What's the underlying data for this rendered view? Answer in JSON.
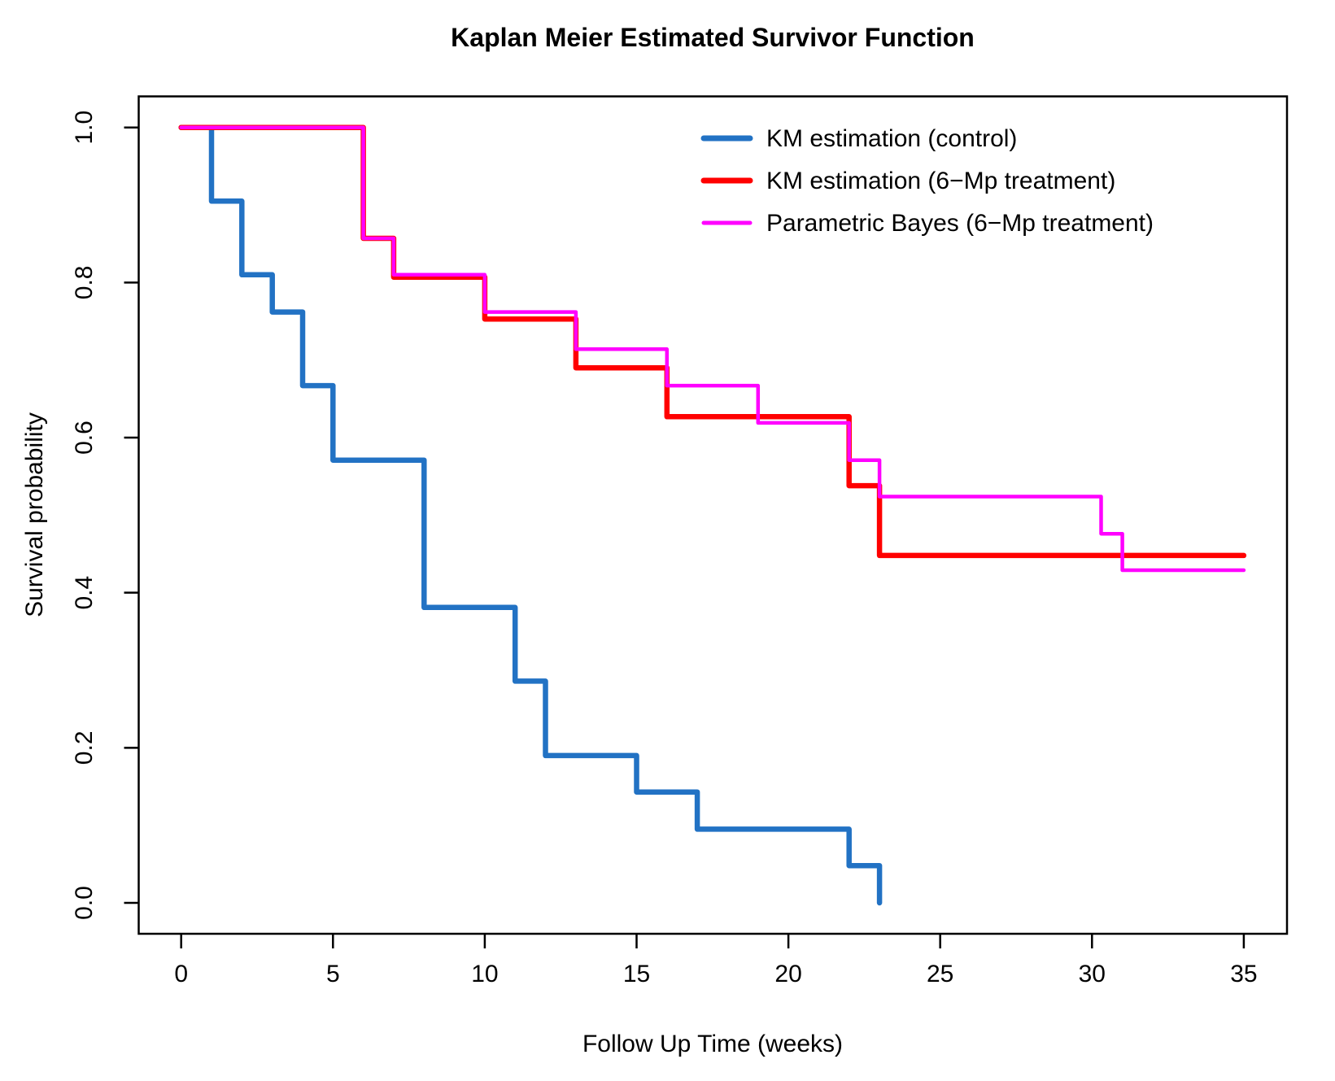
{
  "chart_data": {
    "type": "line",
    "subtype": "kaplan-meier-step",
    "title": "Kaplan Meier Estimated Survivor Function",
    "xlabel": "Follow Up Time (weeks)",
    "ylabel": "Survival probability",
    "xlim": [
      0,
      35
    ],
    "ylim": [
      0.0,
      1.0
    ],
    "grid": false,
    "legend_position": "top-right",
    "box_color": "#000000",
    "x_ticks": [
      {
        "v": 0,
        "label": "0"
      },
      {
        "v": 5,
        "label": "5"
      },
      {
        "v": 10,
        "label": "10"
      },
      {
        "v": 15,
        "label": "15"
      },
      {
        "v": 20,
        "label": "20"
      },
      {
        "v": 25,
        "label": "25"
      },
      {
        "v": 30,
        "label": "30"
      },
      {
        "v": 35,
        "label": "35"
      }
    ],
    "y_ticks": [
      {
        "v": 0.0,
        "label": "0.0"
      },
      {
        "v": 0.2,
        "label": "0.2"
      },
      {
        "v": 0.4,
        "label": "0.4"
      },
      {
        "v": 0.6,
        "label": "0.6"
      },
      {
        "v": 0.8,
        "label": "0.8"
      },
      {
        "v": 1.0,
        "label": "1.0"
      }
    ],
    "series": [
      {
        "name": "KM estimation (control)",
        "color": "#2272C4",
        "line_width": 6.5,
        "extend_to": null,
        "points": [
          [
            0,
            1.0
          ],
          [
            1,
            0.905
          ],
          [
            2,
            0.81
          ],
          [
            3,
            0.762
          ],
          [
            4,
            0.667
          ],
          [
            5,
            0.571
          ],
          [
            8,
            0.381
          ],
          [
            11,
            0.286
          ],
          [
            12,
            0.19
          ],
          [
            15,
            0.143
          ],
          [
            17,
            0.095
          ],
          [
            22,
            0.048
          ],
          [
            23,
            0.0
          ]
        ]
      },
      {
        "name": "KM estimation (6−Mp treatment)",
        "color": "#FF0000",
        "line_width": 6.5,
        "extend_to": 35,
        "points": [
          [
            0,
            1.0
          ],
          [
            6,
            0.857
          ],
          [
            7,
            0.807
          ],
          [
            10,
            0.753
          ],
          [
            13,
            0.69
          ],
          [
            16,
            0.627
          ],
          [
            22,
            0.538
          ],
          [
            23,
            0.448
          ]
        ]
      },
      {
        "name": "Parametric Bayes (6−Mp treatment)",
        "color": "#FF00FF",
        "line_width": 4.5,
        "extend_to": 35,
        "points": [
          [
            0,
            1.0
          ],
          [
            6,
            0.857
          ],
          [
            7,
            0.81
          ],
          [
            10,
            0.762
          ],
          [
            13,
            0.714
          ],
          [
            16,
            0.667
          ],
          [
            19,
            0.619
          ],
          [
            22,
            0.571
          ],
          [
            23,
            0.524
          ],
          [
            30.3,
            0.476
          ],
          [
            31,
            0.429
          ]
        ]
      }
    ]
  }
}
